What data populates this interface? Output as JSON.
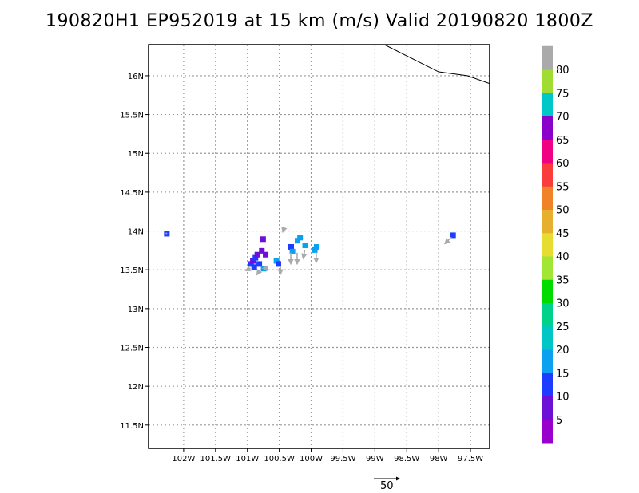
{
  "title": "190820H1 EP952019 at 15 km (m/s) Valid 20190820 1800Z",
  "map": {
    "lon_range": [
      -102.55,
      -97.2
    ],
    "lat_range": [
      11.2,
      16.4
    ],
    "lon_ticks": [
      {
        "value": -102.0,
        "label": "102W"
      },
      {
        "value": -101.5,
        "label": "101.5W"
      },
      {
        "value": -101.0,
        "label": "101W"
      },
      {
        "value": -100.5,
        "label": "100.5W"
      },
      {
        "value": -100.0,
        "label": "100W"
      },
      {
        "value": -99.5,
        "label": "99.5W"
      },
      {
        "value": -99.0,
        "label": "99W"
      },
      {
        "value": -98.5,
        "label": "98.5W"
      },
      {
        "value": -98.0,
        "label": "98W"
      },
      {
        "value": -97.5,
        "label": "97.5W"
      }
    ],
    "lat_ticks": [
      {
        "value": 11.5,
        "label": "11.5N"
      },
      {
        "value": 12.0,
        "label": "12N"
      },
      {
        "value": 12.5,
        "label": "12.5N"
      },
      {
        "value": 13.0,
        "label": "13N"
      },
      {
        "value": 13.5,
        "label": "13.5N"
      },
      {
        "value": 14.0,
        "label": "14N"
      },
      {
        "value": 14.5,
        "label": "14.5N"
      },
      {
        "value": 15.0,
        "label": "15N"
      },
      {
        "value": 15.5,
        "label": "15.5N"
      },
      {
        "value": 16.0,
        "label": "16N"
      }
    ],
    "gridlines": "dotted",
    "coastline": [
      [
        -98.85,
        16.4
      ],
      [
        -98.0,
        16.05
      ],
      [
        -97.55,
        16.0
      ],
      [
        -97.2,
        15.9
      ]
    ],
    "wind_cells": [
      {
        "lon": -102.27,
        "lat": 13.97,
        "speed": 10
      },
      {
        "lon": -97.78,
        "lat": 13.95,
        "speed": 10
      },
      {
        "lon": -100.95,
        "lat": 13.58,
        "speed": 10
      },
      {
        "lon": -100.92,
        "lat": 13.62,
        "speed": 7
      },
      {
        "lon": -100.88,
        "lat": 13.66,
        "speed": 10
      },
      {
        "lon": -100.9,
        "lat": 13.54,
        "speed": 10
      },
      {
        "lon": -100.85,
        "lat": 13.7,
        "speed": 8
      },
      {
        "lon": -100.82,
        "lat": 13.58,
        "speed": 12
      },
      {
        "lon": -100.78,
        "lat": 13.75,
        "speed": 6
      },
      {
        "lon": -100.76,
        "lat": 13.9,
        "speed": 5
      },
      {
        "lon": -100.75,
        "lat": 13.52,
        "speed": 15
      },
      {
        "lon": -100.72,
        "lat": 13.7,
        "speed": 5
      },
      {
        "lon": -100.55,
        "lat": 13.62,
        "speed": 16
      },
      {
        "lon": -100.52,
        "lat": 13.58,
        "speed": 14
      },
      {
        "lon": -100.32,
        "lat": 13.8,
        "speed": 12
      },
      {
        "lon": -100.3,
        "lat": 13.74,
        "speed": 16
      },
      {
        "lon": -100.22,
        "lat": 13.88,
        "speed": 16
      },
      {
        "lon": -100.18,
        "lat": 13.92,
        "speed": 15
      },
      {
        "lon": -100.1,
        "lat": 13.82,
        "speed": 16
      },
      {
        "lon": -99.95,
        "lat": 13.76,
        "speed": 16
      },
      {
        "lon": -99.92,
        "lat": 13.8,
        "speed": 15
      }
    ],
    "wind_vectors": [
      {
        "lon": -102.27,
        "lat": 13.97,
        "u": 0,
        "v": 0
      },
      {
        "lon": -100.95,
        "lat": 13.52,
        "u": -6,
        "v": -3
      },
      {
        "lon": -100.8,
        "lat": 13.5,
        "u": -4,
        "v": -6
      },
      {
        "lon": -100.68,
        "lat": 13.52,
        "u": -6,
        "v": 0
      },
      {
        "lon": -100.48,
        "lat": 13.55,
        "u": 0,
        "v": -10
      },
      {
        "lon": -100.42,
        "lat": 14.05,
        "u": -2,
        "v": -6
      },
      {
        "lon": -100.32,
        "lat": 13.72,
        "u": 0,
        "v": -14
      },
      {
        "lon": -100.22,
        "lat": 13.72,
        "u": 0,
        "v": -14
      },
      {
        "lon": -100.1,
        "lat": 13.75,
        "u": -2,
        "v": -10
      },
      {
        "lon": -99.92,
        "lat": 13.72,
        "u": 0,
        "v": -12
      },
      {
        "lon": -97.8,
        "lat": 13.92,
        "u": -8,
        "v": -8
      }
    ]
  },
  "vector_scale_label": "50",
  "colorbar": {
    "colors": [
      "#9900cc",
      "#6e0fd8",
      "#1e3cff",
      "#0ba0f0",
      "#00c6c6",
      "#00d28c",
      "#00dc00",
      "#a0e632",
      "#e6dc32",
      "#e6af2d",
      "#f08228",
      "#fa3c3c",
      "#f00082",
      "#8c00cc",
      "#00c8c8",
      "#a0dc32",
      "#aaaaaa"
    ],
    "labels": [
      "5",
      "10",
      "15",
      "20",
      "25",
      "30",
      "35",
      "40",
      "45",
      "50",
      "55",
      "60",
      "65",
      "70",
      "75",
      "80"
    ]
  }
}
